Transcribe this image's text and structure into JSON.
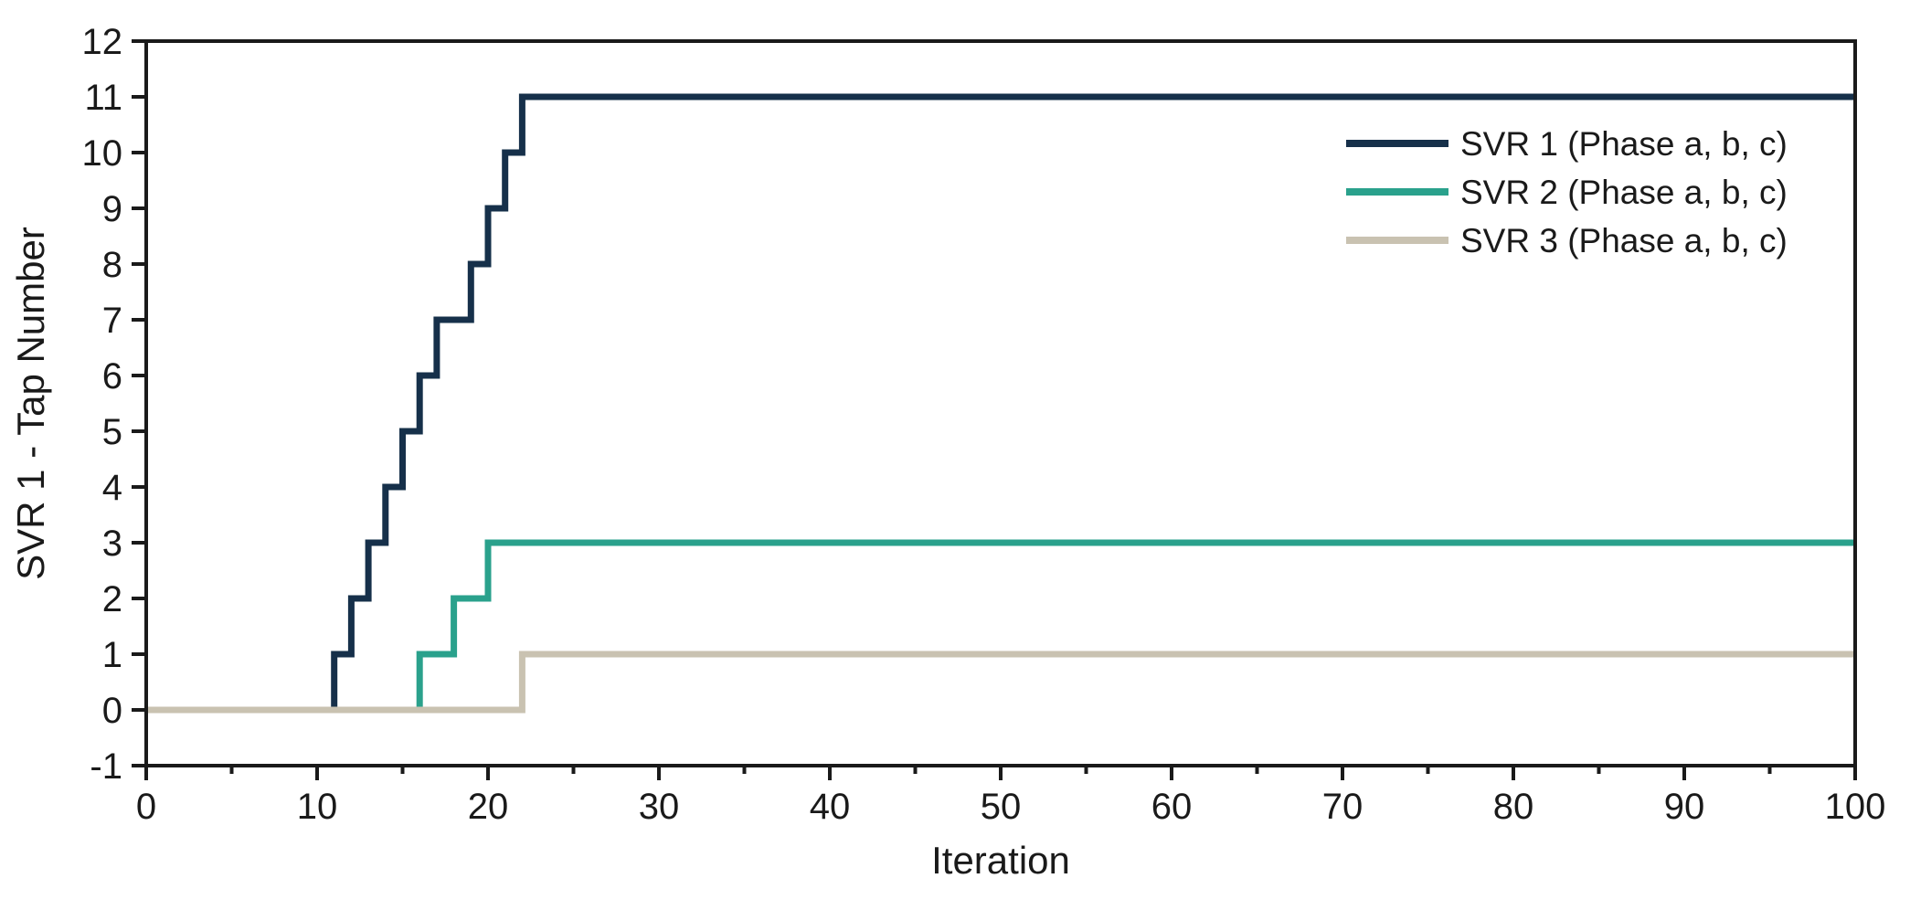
{
  "chart_data": {
    "type": "line",
    "line_style": "step",
    "step_mode": "rise-at-x",
    "title": "",
    "xlabel": "Iteration",
    "ylabel": "SVR 1 - Tap Number",
    "xlim": [
      0,
      100
    ],
    "ylim": [
      -1,
      12
    ],
    "x_major_tick_step": 10,
    "x_minor_tick_step": 5,
    "y_major_tick_step": 1,
    "x_tick_labels": [
      "0",
      "10",
      "20",
      "30",
      "40",
      "50",
      "60",
      "70",
      "80",
      "90",
      "100"
    ],
    "y_tick_labels": [
      "-1",
      "0",
      "1",
      "2",
      "3",
      "4",
      "5",
      "6",
      "7",
      "8",
      "9",
      "10",
      "11",
      "12"
    ],
    "grid": false,
    "legend_position": "top-right-inside",
    "axis_color": "#1a1a1a",
    "background_color": "#ffffff",
    "series": [
      {
        "name": "SVR 1 (Phase a, b, c)",
        "color": "#16304a",
        "steps": [
          [
            0,
            0
          ],
          [
            11,
            1
          ],
          [
            12,
            2
          ],
          [
            13,
            3
          ],
          [
            14,
            4
          ],
          [
            15,
            5
          ],
          [
            16,
            6
          ],
          [
            17,
            7
          ],
          [
            19,
            8
          ],
          [
            20,
            9
          ],
          [
            21,
            10
          ],
          [
            22,
            11
          ]
        ],
        "end_x": 100,
        "final_value": 11
      },
      {
        "name": "SVR 2 (Phase a, b, c)",
        "color": "#2aa18c",
        "steps": [
          [
            0,
            0
          ],
          [
            16,
            1
          ],
          [
            18,
            2
          ],
          [
            20,
            3
          ]
        ],
        "end_x": 100,
        "final_value": 3
      },
      {
        "name": "SVR 3 (Phase a, b, c)",
        "color": "#c9c2b1",
        "steps": [
          [
            0,
            0
          ],
          [
            22,
            1
          ]
        ],
        "end_x": 100,
        "final_value": 1
      }
    ]
  }
}
